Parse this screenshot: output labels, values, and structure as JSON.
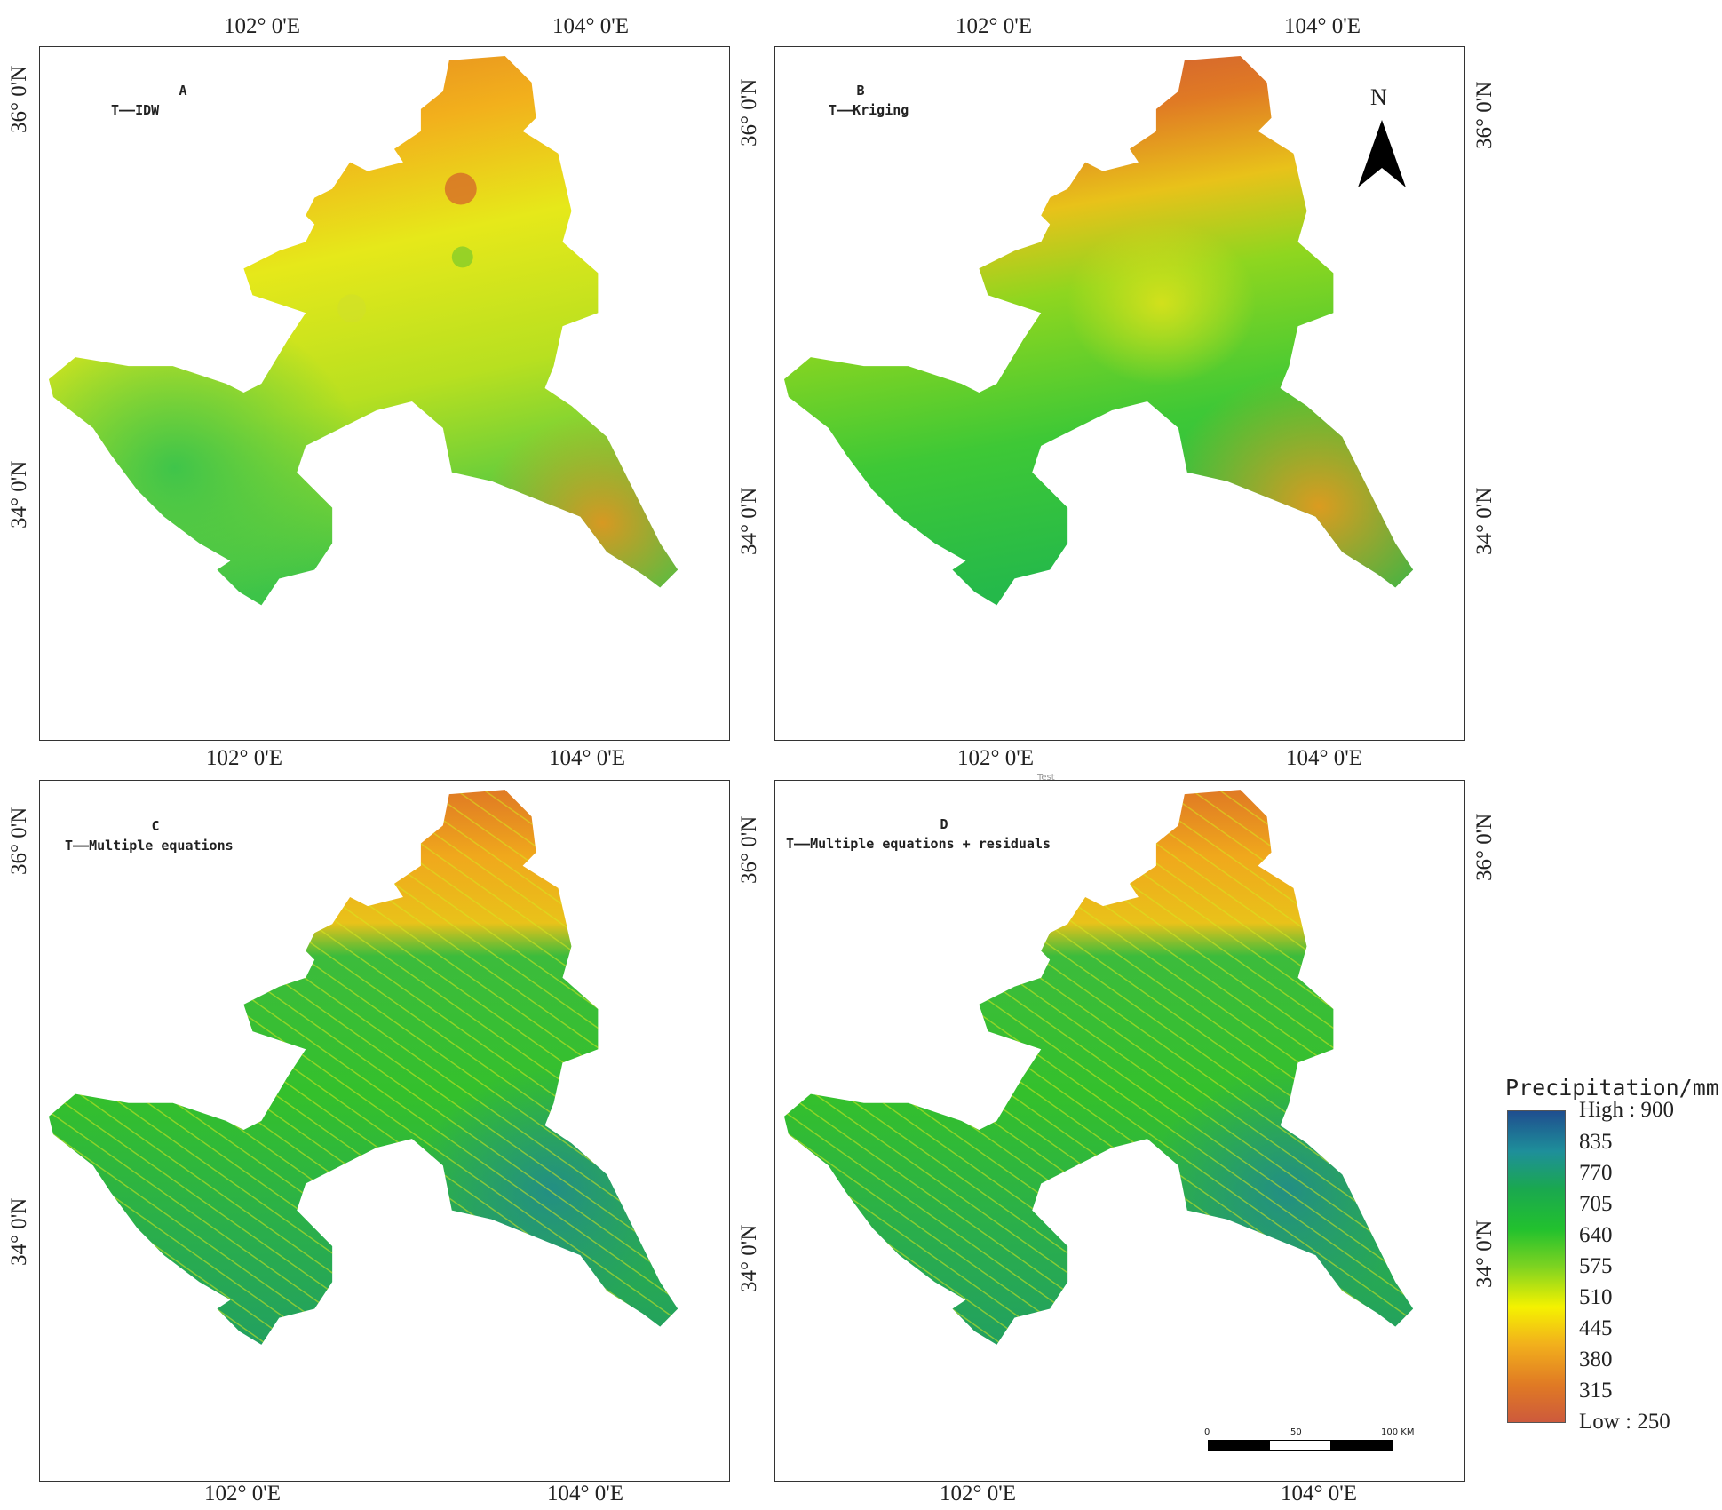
{
  "panels": [
    {
      "id": "A",
      "letter": "A",
      "subtitle": "T——IDW"
    },
    {
      "id": "B",
      "letter": "B",
      "subtitle": "T——Kriging"
    },
    {
      "id": "C",
      "letter": "C",
      "subtitle": "T——Multiple equations"
    },
    {
      "id": "D",
      "letter": "D",
      "subtitle": "T——Multiple equations + residuals"
    }
  ],
  "axes": {
    "lon_102": "102° 0'E",
    "lon_104": "104° 0'E",
    "lat_36": "36° 0'N",
    "lat_34": "34° 0'N"
  },
  "north_arrow": {
    "label": "N"
  },
  "scale_bar": {
    "labels": [
      "0",
      "50",
      "100 KM"
    ]
  },
  "stray_label": "Test",
  "legend": {
    "title": "Precipitation/mm",
    "high_label": "High : 900",
    "low_label": "Low : 250",
    "values": [
      "835",
      "770",
      "705",
      "640",
      "575",
      "510",
      "445",
      "380",
      "315"
    ],
    "colors": [
      "#1f4e8f",
      "#1e8f9a",
      "#1aa84f",
      "#22c12e",
      "#7ed321",
      "#f5f200",
      "#f2b01c",
      "#e07a24",
      "#cd5a3c"
    ]
  }
}
